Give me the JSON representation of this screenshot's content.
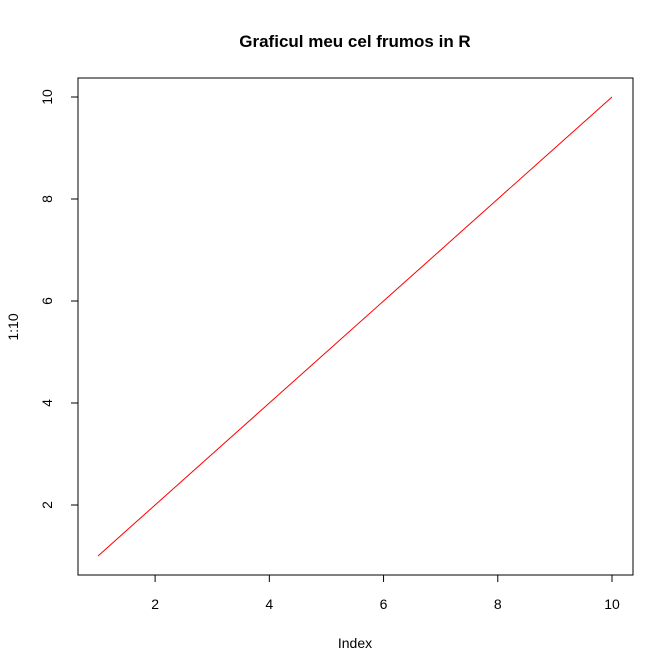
{
  "chart_data": {
    "type": "line",
    "title": "Graficul meu cel frumos in R",
    "xlabel": "Index",
    "ylabel": "1:10",
    "x": [
      1,
      2,
      3,
      4,
      5,
      6,
      7,
      8,
      9,
      10
    ],
    "series": [
      {
        "values": [
          1,
          2,
          3,
          4,
          5,
          6,
          7,
          8,
          9,
          10
        ],
        "color": "#ff0000"
      }
    ],
    "xlim": [
      1,
      10
    ],
    "ylim": [
      1,
      10
    ],
    "x_ticks": [
      2,
      4,
      6,
      8,
      10
    ],
    "y_ticks": [
      2,
      4,
      6,
      8,
      10
    ],
    "x_tick_labels": [
      "2",
      "4",
      "6",
      "8",
      "10"
    ],
    "y_tick_labels": [
      "2",
      "4",
      "6",
      "8",
      "10"
    ],
    "grid": false,
    "legend": "none",
    "frame_color": "#000000",
    "background": "#ffffff"
  }
}
